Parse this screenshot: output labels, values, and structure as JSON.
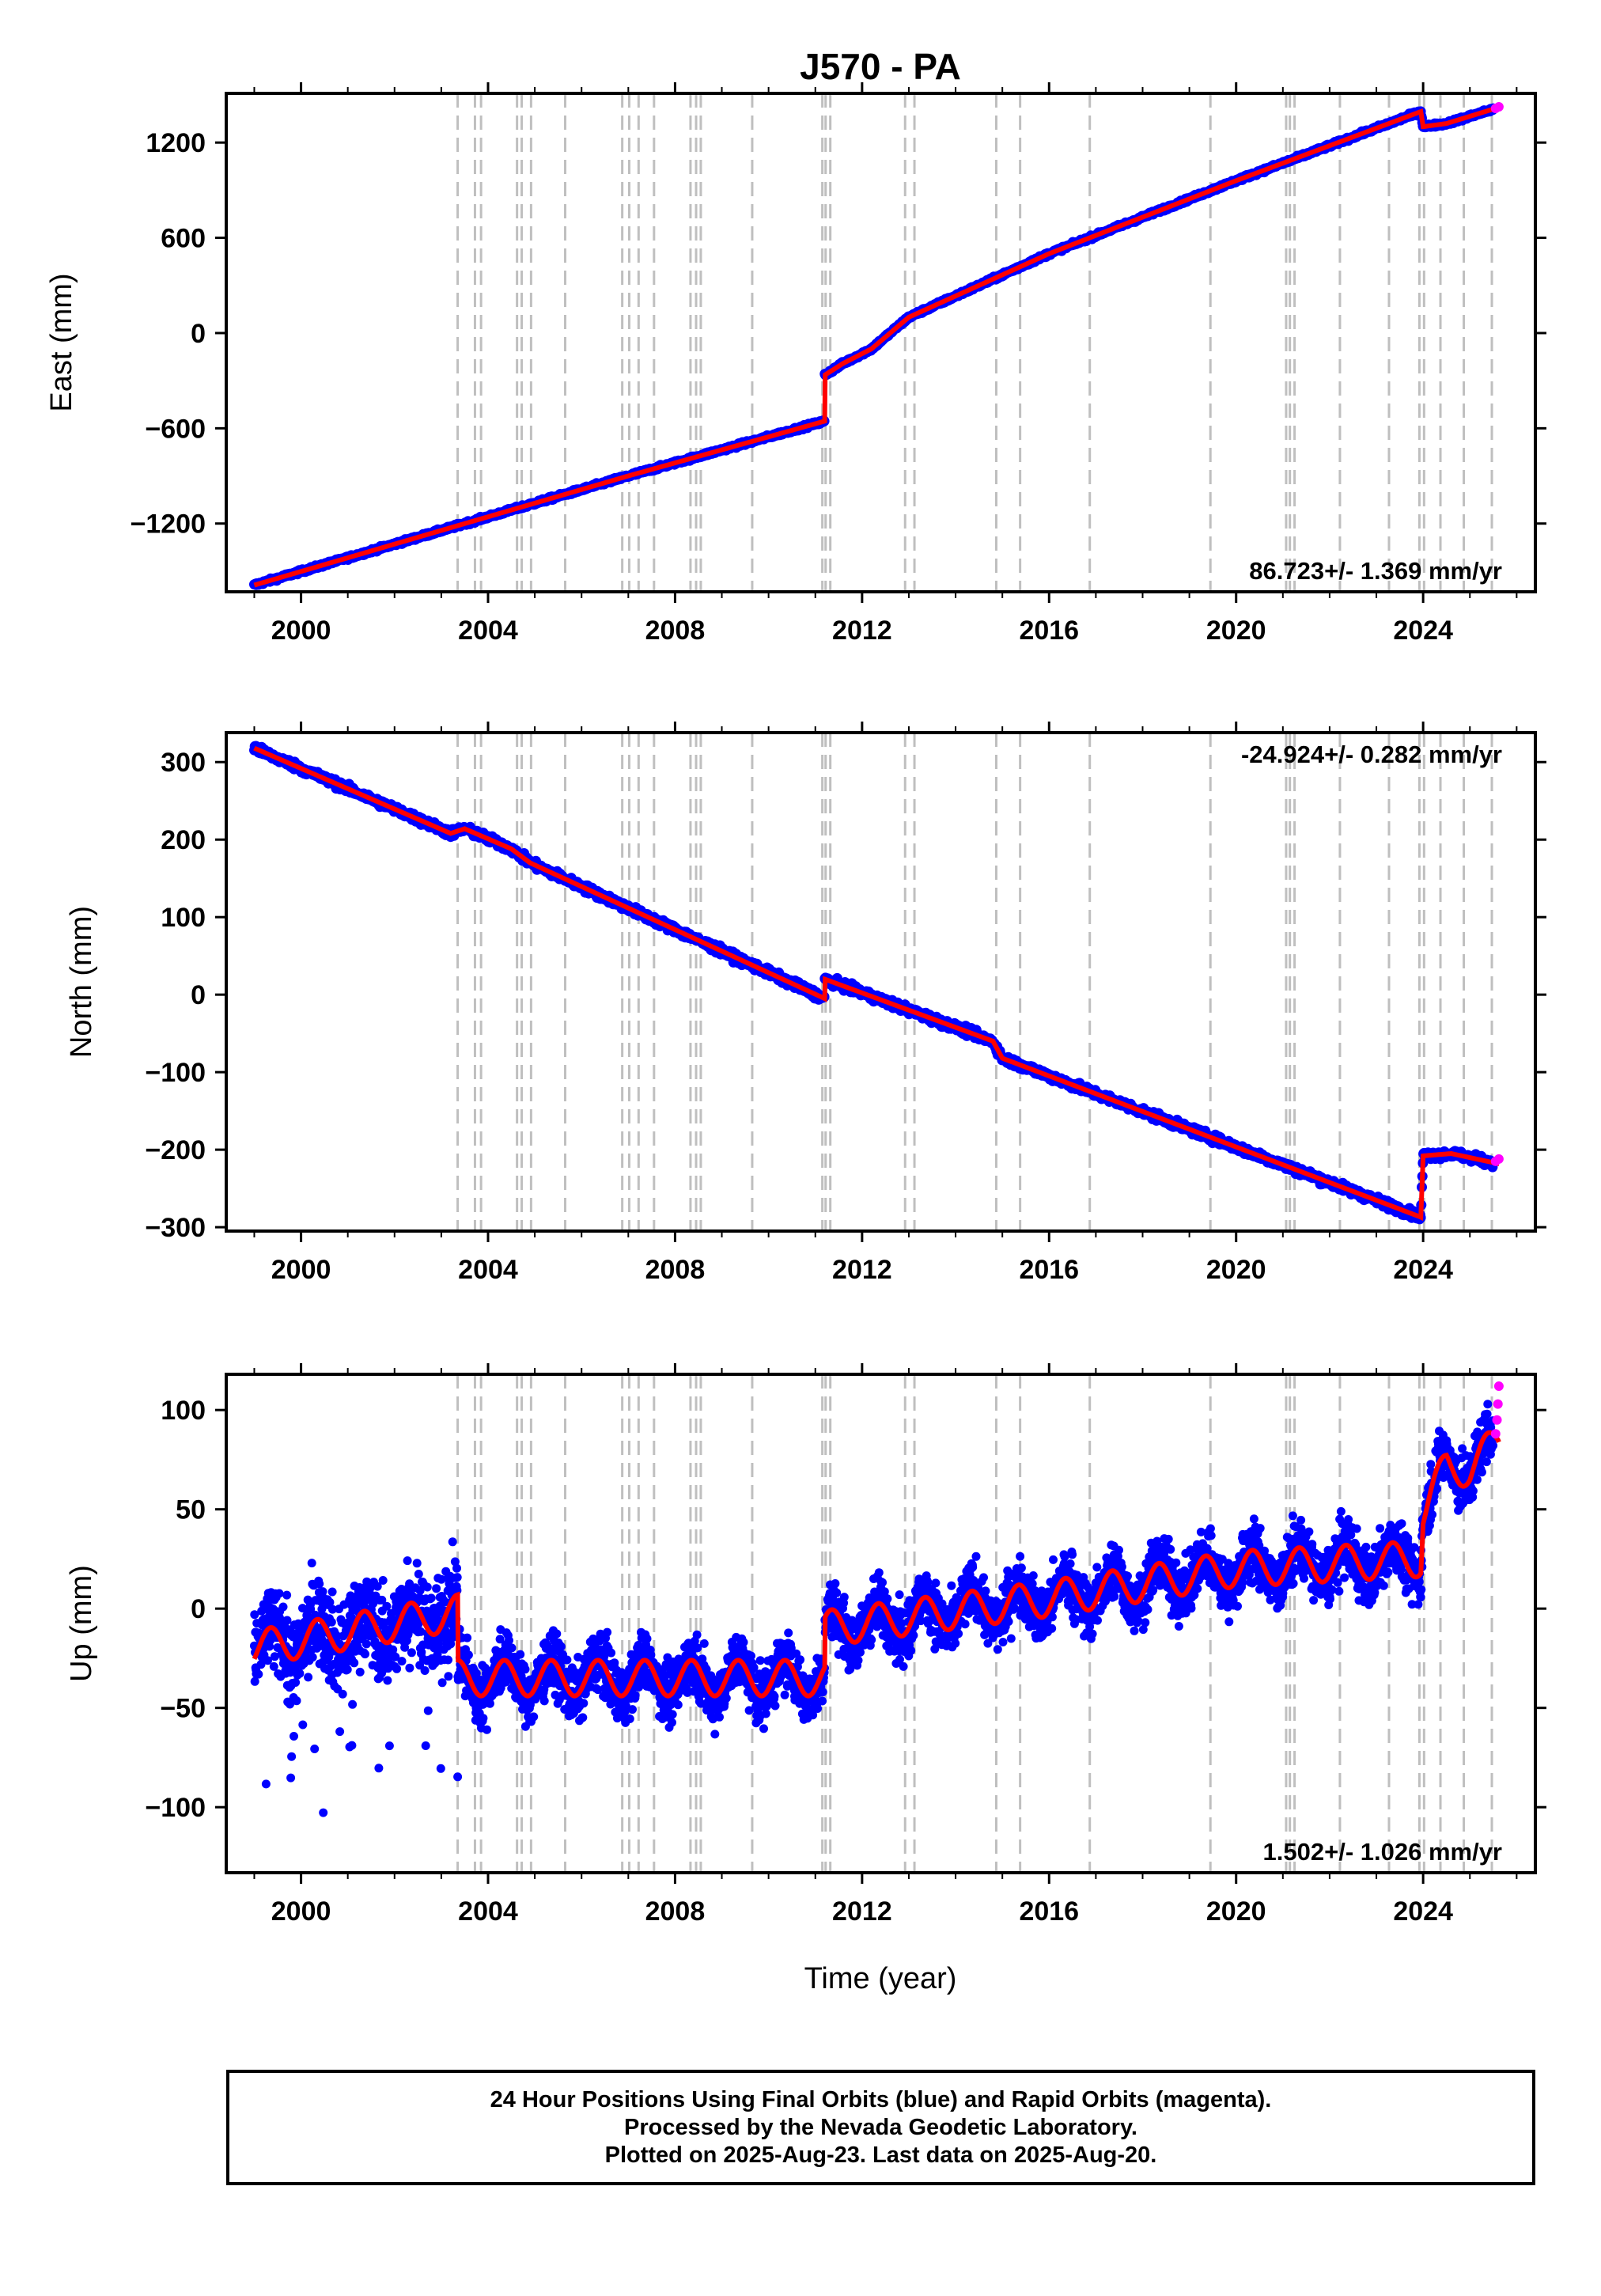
{
  "title": "J570 - PA",
  "xlabel": "Time (year)",
  "colors": {
    "final_orbits": "#0000ff",
    "rapid_orbits": "#ff00ff",
    "model": "#ff0000",
    "event_lines": "#bfbfbf",
    "frame": "#000000"
  },
  "footer": {
    "line1": "24 Hour Positions Using Final Orbits (blue) and Rapid Orbits (magenta).",
    "line2": "Processed by the Nevada Geodetic Laboratory.",
    "line3": "Plotted on 2025-Aug-23. Last data on 2025-Aug-20."
  },
  "chart_data": {
    "type": "scatter",
    "x_ticks": [
      2000,
      2004,
      2008,
      2012,
      2016,
      2020,
      2024
    ],
    "xlim": [
      1998.4,
      2026.4
    ],
    "event_lines": [
      2003.35,
      2003.72,
      2003.85,
      2004.62,
      2004.72,
      2004.92,
      2005.65,
      2006.87,
      2007.02,
      2007.22,
      2007.55,
      2008.33,
      2008.45,
      2008.55,
      2009.65,
      2011.15,
      2011.22,
      2011.32,
      2012.92,
      2013.12,
      2014.87,
      2015.38,
      2016.87,
      2019.45,
      2021.07,
      2021.15,
      2021.25,
      2022.22,
      2023.27,
      2023.92,
      2024.02,
      2024.37,
      2024.87,
      2025.47
    ],
    "panels": [
      {
        "name": "East",
        "ylabel": "East (mm)",
        "yticks": [
          -1200,
          -600,
          0,
          600,
          1200
        ],
        "ylim": [
          -1630,
          1510
        ],
        "rate_label": "86.723+/- 1.369 mm/yr",
        "rate_position": "bottom-right",
        "model": [
          {
            "x": 1999.0,
            "y": -1588
          },
          {
            "x": 2003.4,
            "y": -1209
          },
          {
            "x": 2007.0,
            "y": -900
          },
          {
            "x": 2011.2,
            "y": -555
          },
          {
            "x": 2011.2,
            "y": -265
          },
          {
            "x": 2011.6,
            "y": -190
          },
          {
            "x": 2012.2,
            "y": -100
          },
          {
            "x": 2013.0,
            "y": 100
          },
          {
            "x": 2016.0,
            "y": 500
          },
          {
            "x": 2020.0,
            "y": 960
          },
          {
            "x": 2023.95,
            "y": 1395
          },
          {
            "x": 2024.0,
            "y": 1300
          },
          {
            "x": 2024.5,
            "y": 1320
          },
          {
            "x": 2025.6,
            "y": 1420
          }
        ],
        "rapid": [
          {
            "x": 2025.55,
            "y": 1415
          },
          {
            "x": 2025.62,
            "y": 1425
          }
        ]
      },
      {
        "name": "North",
        "ylabel": "North (mm)",
        "yticks": [
          -300,
          -200,
          -100,
          0,
          100,
          200,
          300
        ],
        "ylim": [
          -305,
          338
        ],
        "rate_label": "-24.924+/- 0.282 mm/yr",
        "rate_position": "top-right",
        "model": [
          {
            "x": 1999.0,
            "y": 318
          },
          {
            "x": 2003.2,
            "y": 208
          },
          {
            "x": 2003.5,
            "y": 214
          },
          {
            "x": 2004.5,
            "y": 188
          },
          {
            "x": 2004.9,
            "y": 170
          },
          {
            "x": 2011.2,
            "y": -5
          },
          {
            "x": 2011.2,
            "y": 20
          },
          {
            "x": 2014.8,
            "y": -60
          },
          {
            "x": 2015.0,
            "y": -82
          },
          {
            "x": 2023.95,
            "y": -287
          },
          {
            "x": 2024.0,
            "y": -208
          },
          {
            "x": 2024.6,
            "y": -205
          },
          {
            "x": 2025.6,
            "y": -218
          }
        ],
        "rapid": [
          {
            "x": 2025.55,
            "y": -215
          },
          {
            "x": 2025.62,
            "y": -212
          }
        ]
      },
      {
        "name": "Up",
        "ylabel": "Up (mm)",
        "yticks": [
          -100,
          -50,
          0,
          50,
          100
        ],
        "ylim": [
          -133,
          118
        ],
        "rate_label": "1.502+/- 1.026 mm/yr",
        "rate_position": "bottom-right",
        "model": [
          {
            "x": 1999.0,
            "y": -20
          },
          {
            "x": 2003.35,
            "y": -2
          },
          {
            "x": 2003.35,
            "y": -35
          },
          {
            "x": 2011.2,
            "y": -35
          },
          {
            "x": 2011.2,
            "y": -10
          },
          {
            "x": 2016.0,
            "y": 5
          },
          {
            "x": 2020.0,
            "y": 20
          },
          {
            "x": 2023.95,
            "y": 25
          },
          {
            "x": 2024.0,
            "y": 48
          },
          {
            "x": 2024.5,
            "y": 72
          },
          {
            "x": 2025.0,
            "y": 70
          },
          {
            "x": 2025.6,
            "y": 85
          }
        ],
        "rapid": [
          {
            "x": 2025.55,
            "y": 88
          },
          {
            "x": 2025.58,
            "y": 95
          },
          {
            "x": 2025.6,
            "y": 103
          },
          {
            "x": 2025.62,
            "y": 112
          }
        ]
      }
    ]
  }
}
